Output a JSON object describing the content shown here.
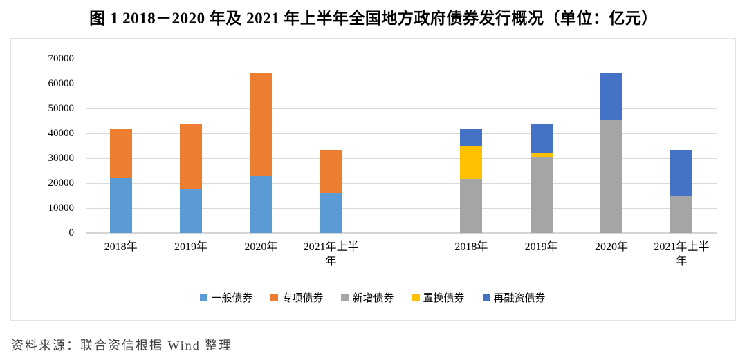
{
  "title": "图 1  2018－2020 年及 2021 年上半年全国地方政府债券发行概况（单位：亿元）",
  "source": "资料来源：联合资信根据 Wind 整理",
  "chart_data": {
    "type": "bar",
    "stacked": true,
    "unit": "亿元",
    "title": "图 1  2018－2020 年及 2021 年上半年全国地方政府债券发行概况（单位：亿元）",
    "xlabel": "",
    "ylabel": "",
    "ylim": [
      0,
      70000
    ],
    "yticks": [
      0,
      10000,
      20000,
      30000,
      40000,
      50000,
      60000,
      70000
    ],
    "grid": true,
    "legend_position": "bottom",
    "categories": [
      "2018年",
      "2019年",
      "2020年",
      "2021年上半年"
    ],
    "groups": [
      {
        "series": [
          {
            "name": "一般债券",
            "color": "#5B9BD5",
            "values": [
              22200,
              17800,
              22900,
              15900
            ]
          },
          {
            "name": "专项债券",
            "color": "#ED7D31",
            "values": [
              19500,
              25900,
              41500,
              17500
            ]
          }
        ]
      },
      {
        "series": [
          {
            "name": "新增债券",
            "color": "#A5A5A5",
            "values": [
              21700,
              30600,
              45500,
              14900
            ]
          },
          {
            "name": "置换债券",
            "color": "#FFC000",
            "values": [
              13000,
              1600,
              0,
              0
            ]
          },
          {
            "name": "再融资债券",
            "color": "#4472C4",
            "values": [
              7000,
              11500,
              18900,
              18500
            ]
          }
        ]
      }
    ],
    "group_totals": [
      [
        41700,
        43700,
        64400,
        33400
      ],
      [
        41700,
        43700,
        64400,
        33300
      ]
    ],
    "legend": [
      "一般债券",
      "专项债券",
      "新增债券",
      "置换债券",
      "再融资债券"
    ],
    "colors": {
      "general_bond": "#5B9BD5",
      "special_bond": "#ED7D31",
      "new_bond": "#A5A5A5",
      "replacement_bond": "#FFC000",
      "refinancing_bond": "#4472C4",
      "gridline": "#D9D9D9",
      "frame_border": "#E2E2E2"
    }
  }
}
